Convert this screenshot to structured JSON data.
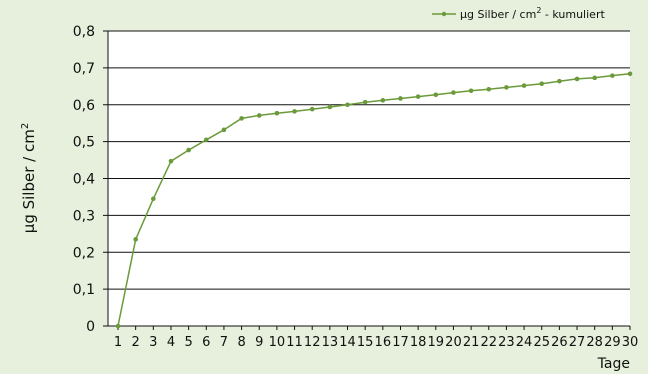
{
  "chart_data": {
    "type": "line",
    "xlabel": "Tage",
    "ylabel": "µg Silber / cm",
    "ylabel_sup": "2",
    "ylim": [
      0,
      0.8
    ],
    "yticks": [
      "0",
      "0,1",
      "0,2",
      "0,3",
      "0,4",
      "0,5",
      "0,6",
      "0,7",
      "0,8"
    ],
    "grid": true,
    "legend_position": "top-right",
    "series": [
      {
        "name": "µg Silber / cm2 - kumuliert",
        "name_text": "µg Silber / cm",
        "name_sup": "2",
        "name_suffix": " - kumuliert",
        "color": "#6a9a3a",
        "x": [
          1,
          2,
          3,
          4,
          5,
          6,
          7,
          8,
          9,
          10,
          11,
          12,
          13,
          14,
          15,
          16,
          17,
          18,
          19,
          20,
          21,
          22,
          23,
          24,
          25,
          26,
          27,
          28,
          29,
          30
        ],
        "values": [
          0.0,
          0.235,
          0.345,
          0.447,
          0.477,
          0.505,
          0.532,
          0.563,
          0.571,
          0.577,
          0.582,
          0.588,
          0.594,
          0.6,
          0.607,
          0.612,
          0.617,
          0.622,
          0.627,
          0.633,
          0.638,
          0.642,
          0.647,
          0.652,
          0.657,
          0.664,
          0.67,
          0.673,
          0.679,
          0.684
        ]
      }
    ]
  }
}
